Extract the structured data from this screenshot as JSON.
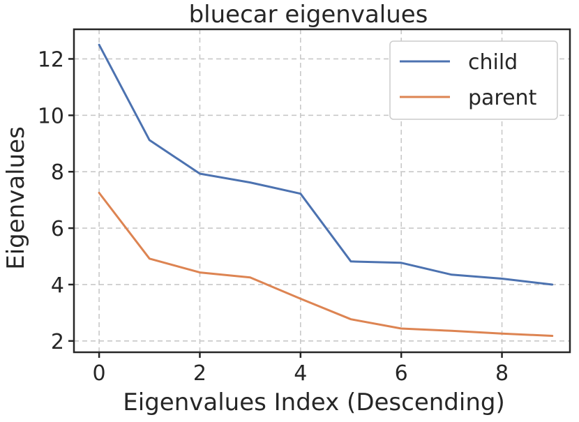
{
  "chart_data": {
    "type": "line",
    "title": "bluecar eigenvalues",
    "xlabel": "Eigenvalues Index (Descending)",
    "ylabel": "Eigenvalues",
    "x": [
      0,
      1,
      2,
      3,
      4,
      5,
      6,
      7,
      8,
      9
    ],
    "xlim": [
      -0.5,
      9.35
    ],
    "ylim": [
      1.6,
      13.05
    ],
    "xticks": [
      0,
      2,
      4,
      6,
      8
    ],
    "yticks": [
      2,
      4,
      6,
      8,
      10,
      12
    ],
    "grid": true,
    "legend_position": "top-right",
    "series": [
      {
        "name": "child",
        "color": "#4c72b0",
        "values": [
          12.5,
          9.12,
          7.93,
          7.62,
          7.22,
          4.82,
          4.77,
          4.35,
          4.21,
          4.0
        ]
      },
      {
        "name": "parent",
        "color": "#dd8452",
        "values": [
          7.25,
          4.92,
          4.43,
          4.25,
          3.5,
          2.77,
          2.44,
          2.36,
          2.26,
          2.18
        ]
      }
    ]
  }
}
